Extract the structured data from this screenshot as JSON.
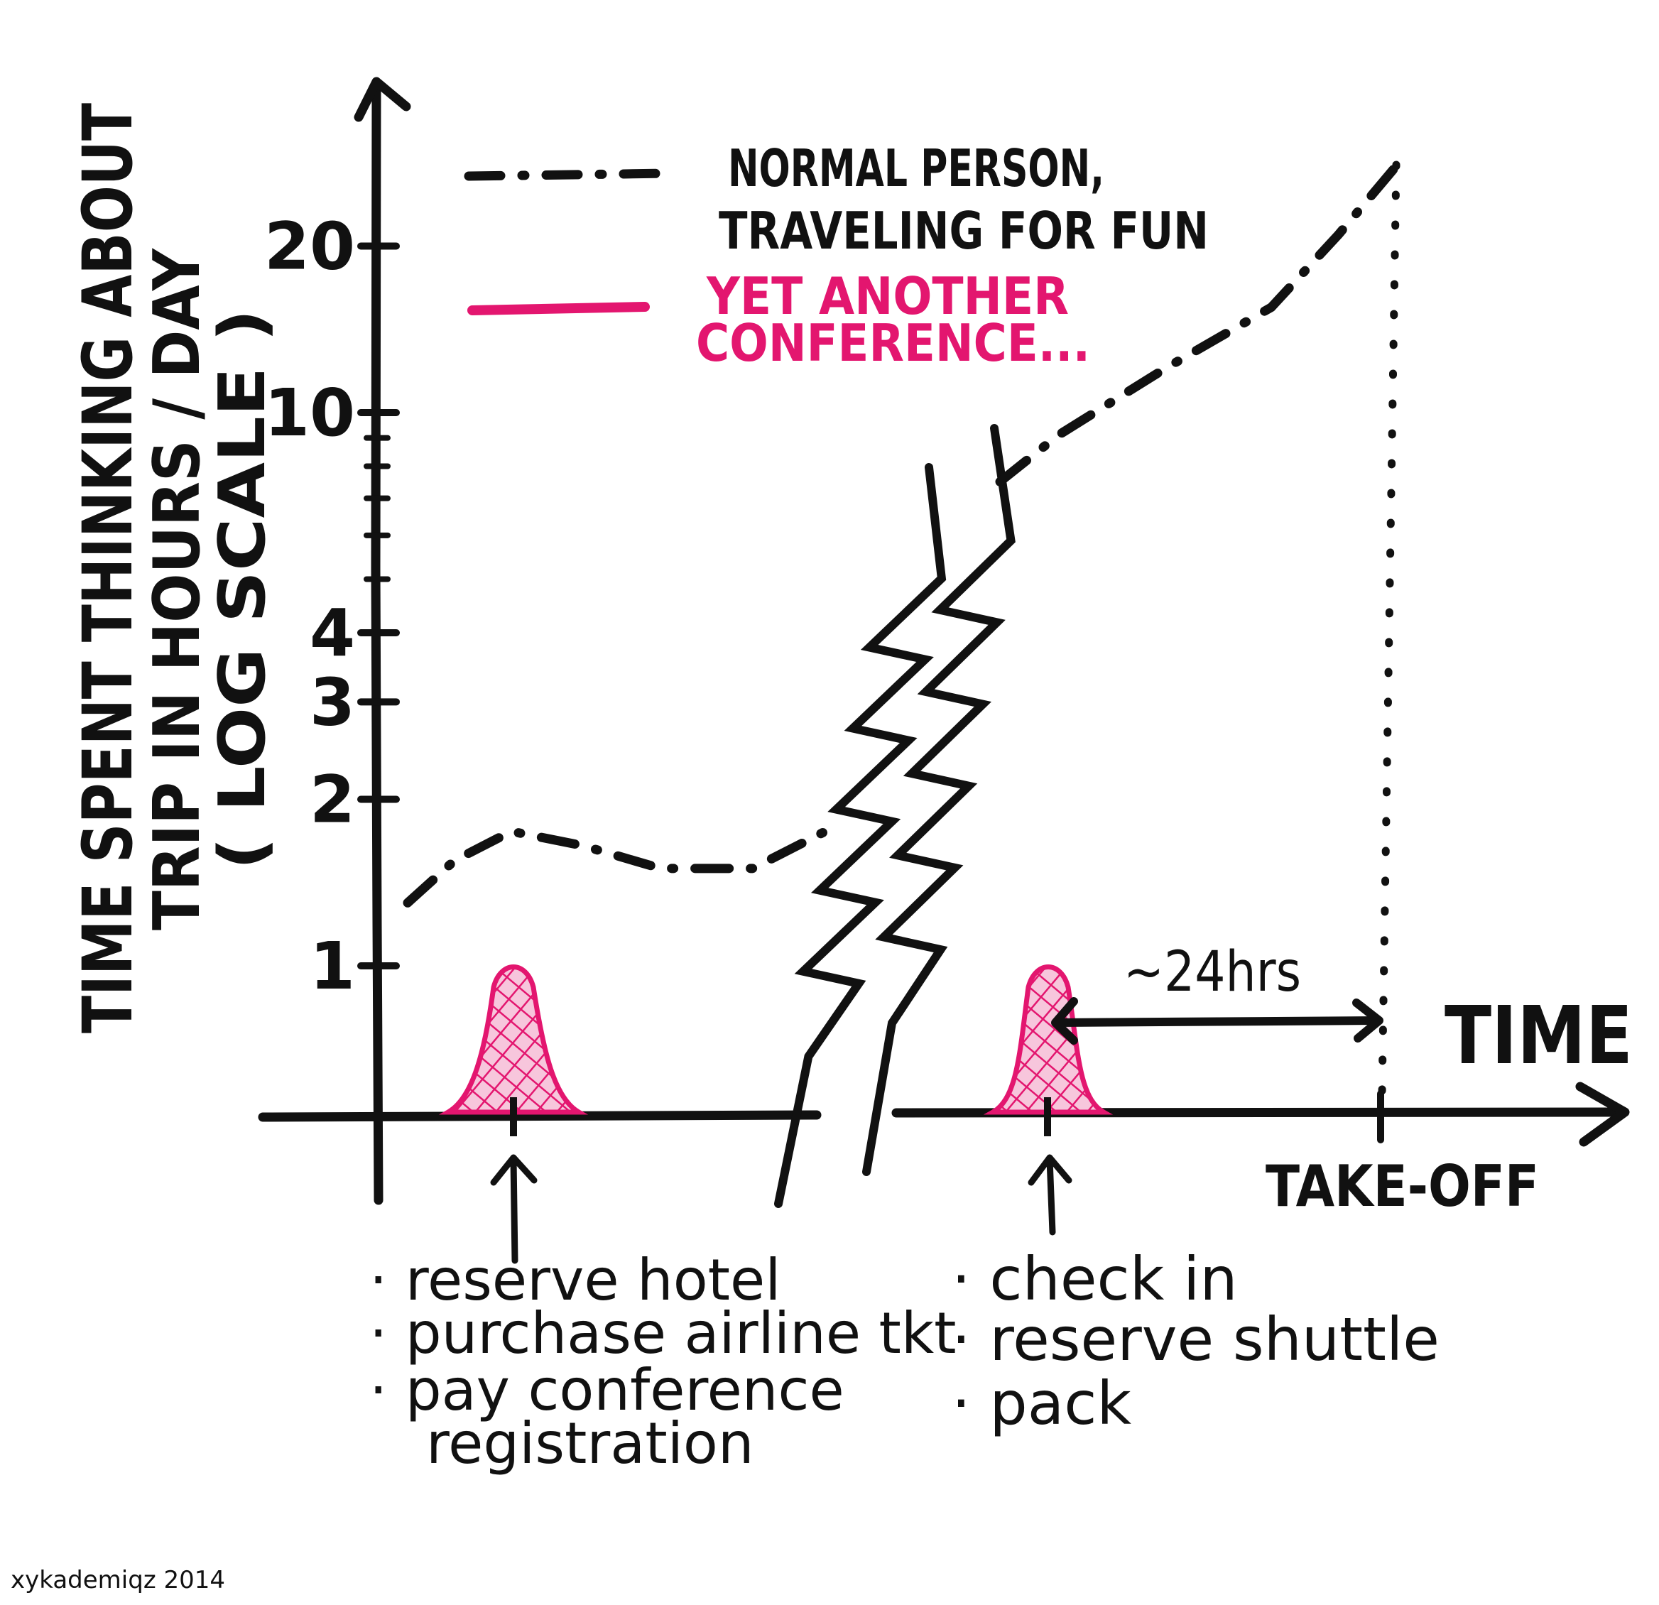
{
  "chart_data": {
    "type": "line",
    "yscale": "log",
    "ylabel_lines": [
      "TIME SPENT THINKING ABOUT",
      "TRIP IN HOURS / DAY",
      "( LOG SCALE )"
    ],
    "xlabel": "TIME",
    "yticks": [
      {
        "value": 1,
        "label": "1"
      },
      {
        "value": 2,
        "label": "2"
      },
      {
        "value": 3,
        "label": "3"
      },
      {
        "value": 4,
        "label": "4"
      },
      {
        "value": 10,
        "label": "10"
      },
      {
        "value": 20,
        "label": "20"
      }
    ],
    "minor_yticks": [
      5,
      6,
      7,
      8,
      9
    ],
    "grid": false,
    "legend_placement": "top",
    "legend": [
      {
        "lines": [
          "NORMAL PERSON,",
          "TRAVELING FOR FUN"
        ],
        "style": "dash-dot",
        "color": "#111111"
      },
      {
        "lines": [
          "YET ANOTHER",
          "CONFERENCE..."
        ],
        "style": "solid",
        "color": "#e3166f"
      }
    ],
    "series": [
      {
        "legend_index": 0,
        "segments": [
          {
            "y": [
              1.3,
              1.55,
              1.75,
              1.65,
              1.5,
              1.5,
              1.75
            ]
          },
          {
            "y": [
              7.5,
              9.1,
              12,
              15.5,
              21,
              28
            ]
          }
        ]
      },
      {
        "legend_index": 1,
        "peaks": [
          {
            "y": 1
          },
          {
            "y": 1
          }
        ]
      }
    ],
    "axis_break": true,
    "x_marks": [
      {
        "label": "TAKE-OFF"
      }
    ],
    "annotations": {
      "interval": "~24hrs",
      "event1_items": [
        "reserve hotel",
        "purchase airline tkt",
        "pay conference",
        "registration"
      ],
      "event2_items": [
        "check in",
        "reserve shuttle",
        "pack"
      ]
    },
    "colors": {
      "ink": "#111111",
      "accent": "#e3166f"
    }
  },
  "credit": "xykademiqz 2014"
}
